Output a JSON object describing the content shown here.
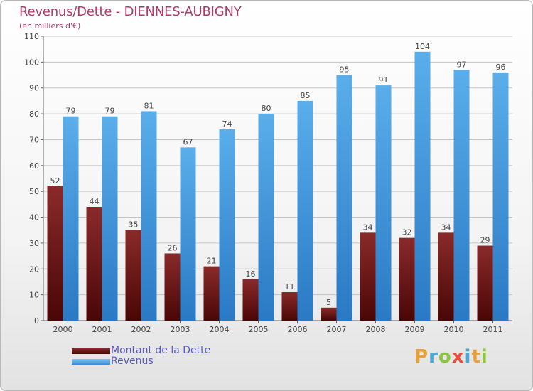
{
  "title": "Revenus/Dette - DIENNES-AUBIGNY",
  "subtitle": "(en milliers d'€)",
  "chart_data": {
    "type": "bar",
    "title": "Revenus/Dette - DIENNES-AUBIGNY",
    "subtitle": "(en milliers d'€)",
    "xlabel": "",
    "ylabel": "",
    "ylim": [
      0,
      110
    ],
    "yticks": [
      0,
      10,
      20,
      30,
      40,
      50,
      60,
      70,
      80,
      90,
      100,
      110
    ],
    "grid": true,
    "legend_position": "bottom-left",
    "categories": [
      "2000",
      "2001",
      "2002",
      "2003",
      "2004",
      "2005",
      "2006",
      "2007",
      "2008",
      "2009",
      "2010",
      "2011"
    ],
    "series": [
      {
        "name": "Montant de la Dette",
        "color": "#7a1a1a",
        "values": [
          52,
          44,
          35,
          26,
          21,
          16,
          11,
          5,
          34,
          32,
          34,
          29
        ]
      },
      {
        "name": "Revenus",
        "color": "#4a9fe0",
        "values": [
          79,
          79,
          81,
          67,
          74,
          80,
          85,
          95,
          91,
          104,
          97,
          96
        ]
      }
    ]
  },
  "logo": {
    "letters": [
      "P",
      "r",
      "o",
      "x",
      "i",
      "t",
      "i"
    ],
    "colors": [
      "#e8a13a",
      "#4aa7d8",
      "#8cc43f",
      "#e84f3a",
      "#4aa7d8",
      "#e8a13a",
      "#8cc43f"
    ]
  }
}
